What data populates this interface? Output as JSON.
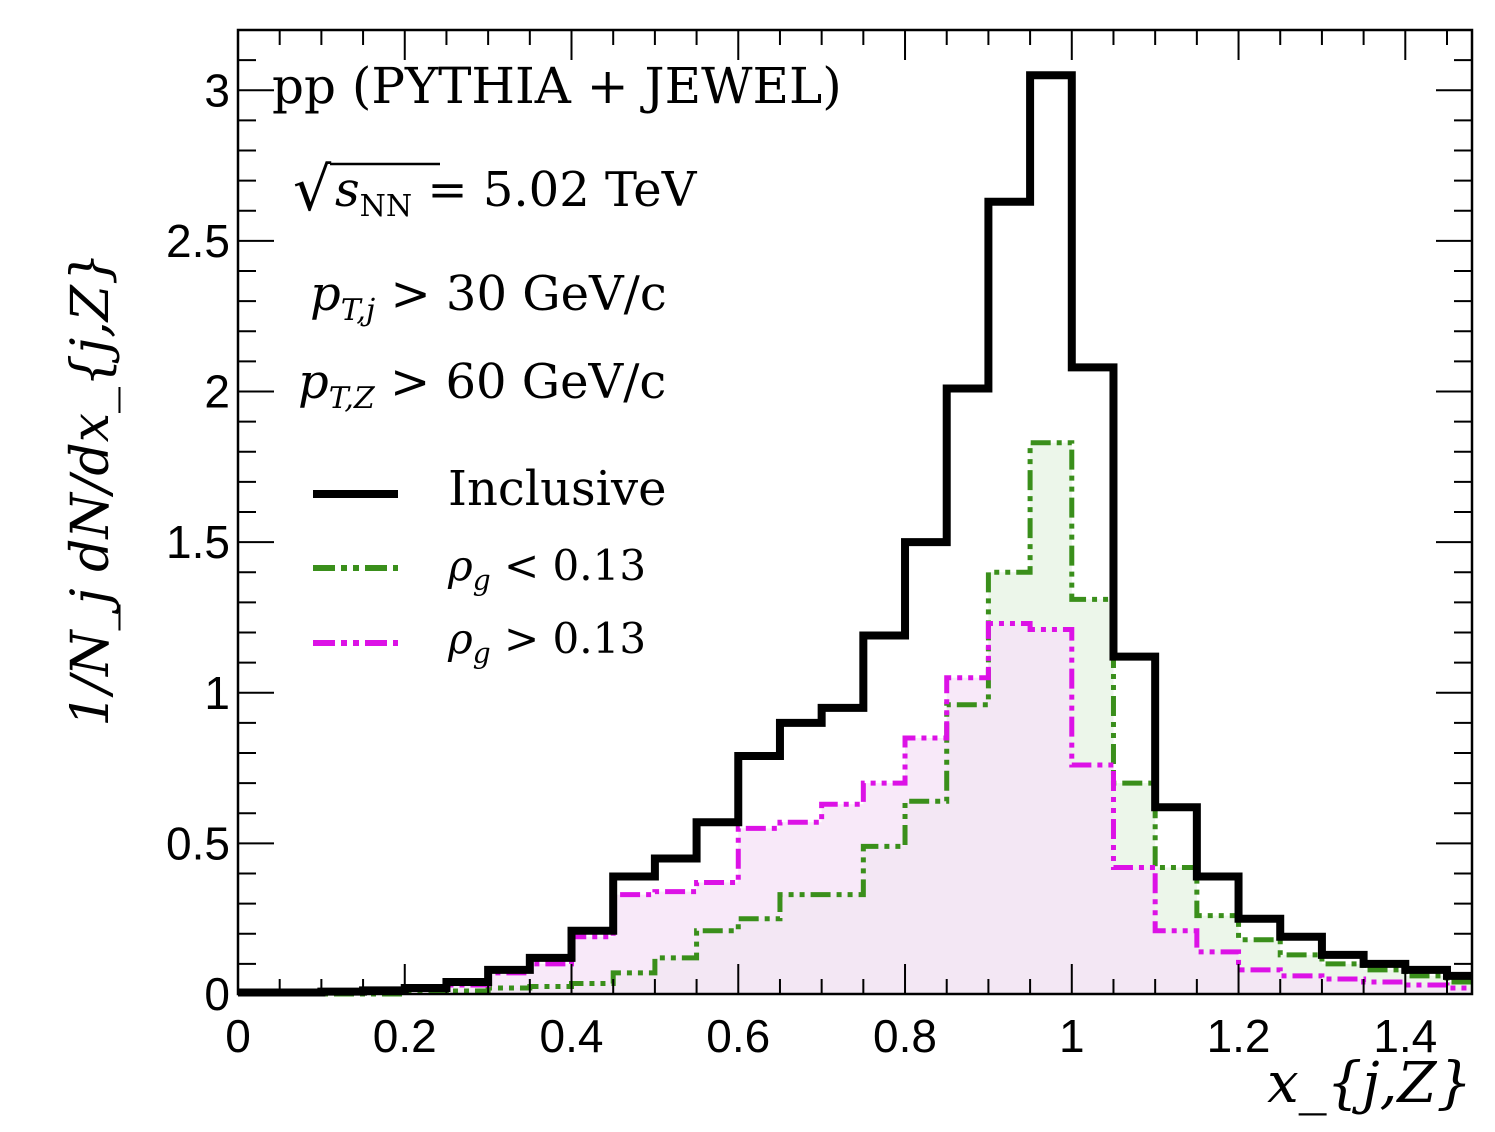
{
  "chart_data": {
    "type": "histogram",
    "title": "pp (PYTHIA + JEWEL)",
    "xlabel": "x_{j,Z}",
    "ylabel": "1/N_j dN/dx_{j,Z}",
    "xlim": [
      0,
      1.48
    ],
    "ylim": [
      0,
      3.2
    ],
    "bin_width": 0.05,
    "x_ticks": [
      0,
      0.2,
      0.4,
      0.6,
      0.8,
      1.0,
      1.2,
      1.4
    ],
    "x_tick_labels": [
      "0",
      "0.2",
      "0.4",
      "0.6",
      "0.8",
      "1",
      "1.2",
      "1.4"
    ],
    "y_ticks": [
      0,
      0.5,
      1.0,
      1.5,
      2.0,
      2.5,
      3.0
    ],
    "y_tick_labels": [
      "0",
      "0.5",
      "1",
      "1.5",
      "2",
      "2.5",
      "3"
    ],
    "annotations": {
      "energy_sqrt": "√",
      "energy_var": "s",
      "energy_sub": "NN",
      "energy_value": " = 5.02 TeV",
      "cut_jet_var": "p",
      "cut_jet_sub": "T,j",
      "cut_jet_value": " > 30 GeV/c",
      "cut_z_var": "p",
      "cut_z_sub": "T,Z",
      "cut_z_value": " > 60 GeV/c"
    },
    "series": [
      {
        "name": "Inclusive",
        "color": "#000000",
        "style": "solid",
        "filled": false,
        "values": [
          0.005,
          0.005,
          0.008,
          0.012,
          0.02,
          0.04,
          0.08,
          0.12,
          0.21,
          0.39,
          0.45,
          0.57,
          0.79,
          0.9,
          0.95,
          1.19,
          1.5,
          2.01,
          2.63,
          3.05,
          2.08,
          1.12,
          0.62,
          0.39,
          0.25,
          0.19,
          0.13,
          0.1,
          0.08,
          0.06
        ]
      },
      {
        "name": "ρ_g < 0.13",
        "color": "#3a8f1b",
        "fill": "#e6f3e3",
        "style": "dashdot",
        "filled": true,
        "values": [
          0.0,
          0.0,
          0.0,
          0.0,
          0.005,
          0.01,
          0.02,
          0.025,
          0.035,
          0.07,
          0.12,
          0.21,
          0.25,
          0.33,
          0.33,
          0.49,
          0.64,
          0.96,
          1.4,
          1.83,
          1.31,
          0.7,
          0.42,
          0.26,
          0.18,
          0.13,
          0.1,
          0.08,
          0.06,
          0.04
        ]
      },
      {
        "name": "ρ_g > 0.13",
        "color": "#dc12e6",
        "fill": "#f6e1f7",
        "style": "dashdot",
        "filled": true,
        "values": [
          0.005,
          0.005,
          0.008,
          0.01,
          0.015,
          0.03,
          0.07,
          0.1,
          0.19,
          0.33,
          0.34,
          0.37,
          0.55,
          0.57,
          0.63,
          0.7,
          0.85,
          1.05,
          1.23,
          1.21,
          0.76,
          0.42,
          0.21,
          0.14,
          0.08,
          0.06,
          0.05,
          0.04,
          0.03,
          0.02
        ]
      }
    ],
    "legend": [
      {
        "label_var": "Inclusive",
        "label_sub": "",
        "label_rest": ""
      },
      {
        "label_var": "ρ",
        "label_sub": "g",
        "label_rest": " < 0.13"
      },
      {
        "label_var": "ρ",
        "label_sub": "g",
        "label_rest": " > 0.13"
      }
    ]
  }
}
